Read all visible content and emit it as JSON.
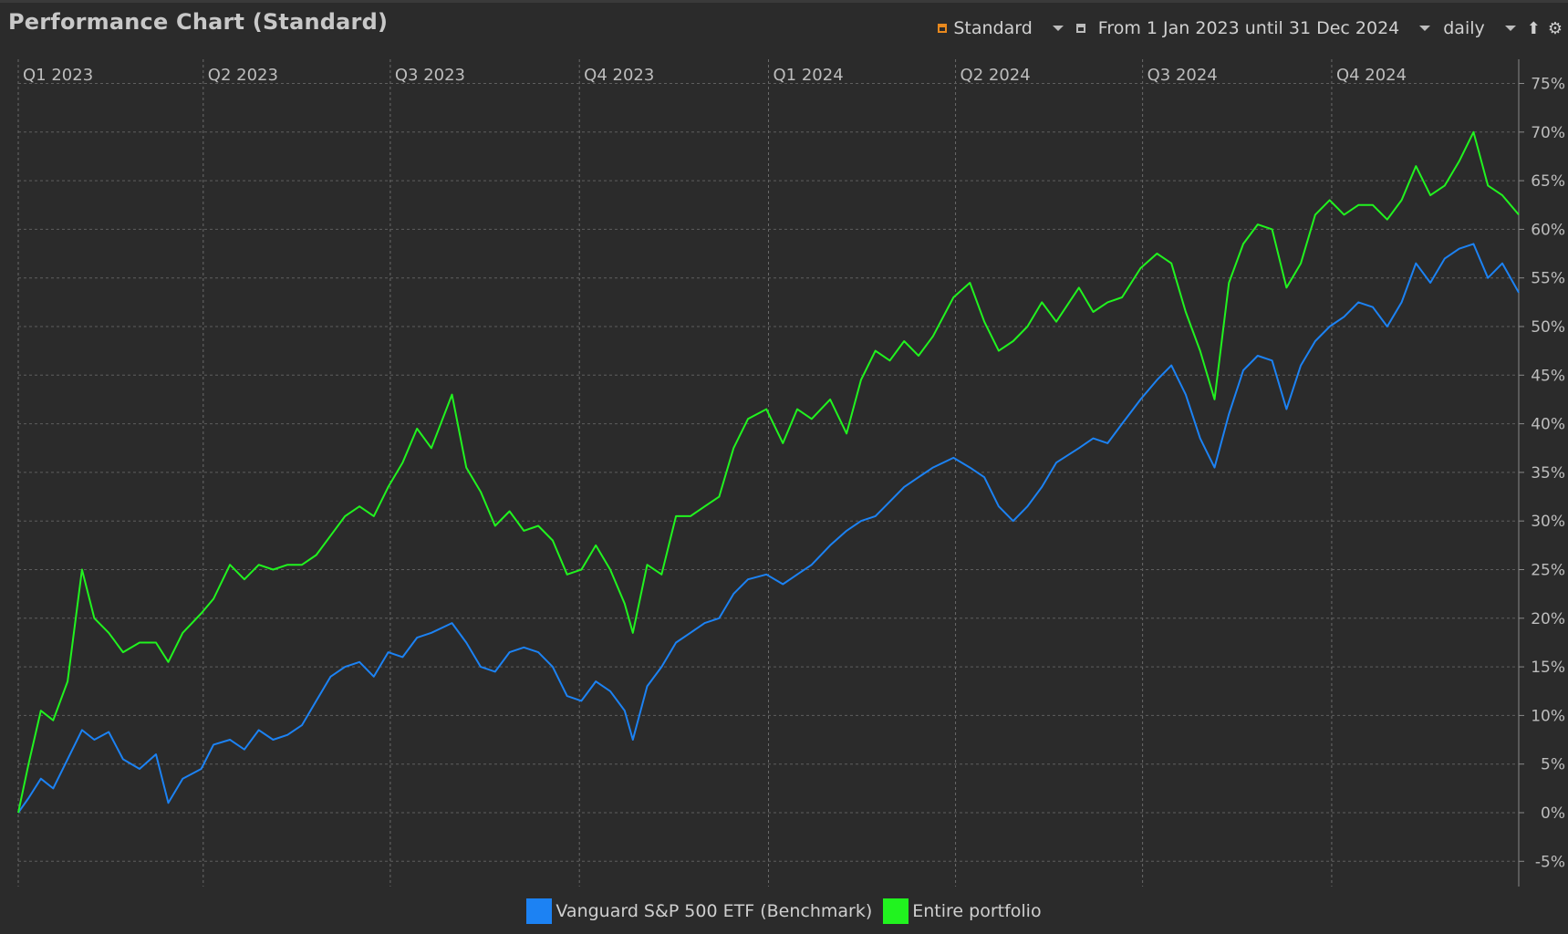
{
  "title": "Performance Chart (Standard)",
  "toolbar": {
    "view_label": "Standard",
    "period_label": "From 1 Jan 2023 until 31 Dec 2024",
    "interval_label": "daily",
    "icons": [
      "standard-view-icon",
      "dropdown-icon",
      "calendar-icon",
      "export-icon",
      "settings-icon"
    ]
  },
  "chart_data": {
    "type": "line",
    "x_ticks": [
      "Q1 2023",
      "Q2 2023",
      "Q3 2023",
      "Q4 2023",
      "Q1 2024",
      "Q2 2024",
      "Q3 2024",
      "Q4 2024"
    ],
    "y_ticks": [
      "75%",
      "70%",
      "65%",
      "60%",
      "55%",
      "50%",
      "45%",
      "40%",
      "35%",
      "30%",
      "25%",
      "20%",
      "15%",
      "10%",
      "5%",
      "0%",
      "-5%"
    ],
    "xlim": [
      "2023-01-01",
      "2024-12-31"
    ],
    "ylim": [
      -7.5,
      77
    ],
    "grid": true,
    "legend_position": "bottom",
    "series": [
      {
        "name": "Vanguard S&P 500 ETF (Benchmark)",
        "color": "#1c82f3",
        "points": [
          [
            "2023-01-01",
            0
          ],
          [
            "2023-01-06",
            1.5
          ],
          [
            "2023-01-12",
            3.5
          ],
          [
            "2023-01-18",
            2.5
          ],
          [
            "2023-01-25",
            5.5
          ],
          [
            "2023-02-01",
            8.5
          ],
          [
            "2023-02-07",
            7.5
          ],
          [
            "2023-02-14",
            8.3
          ],
          [
            "2023-02-21",
            5.5
          ],
          [
            "2023-03-01",
            4.5
          ],
          [
            "2023-03-09",
            6.0
          ],
          [
            "2023-03-15",
            1.0
          ],
          [
            "2023-03-22",
            3.5
          ],
          [
            "2023-03-31",
            4.5
          ],
          [
            "2023-04-06",
            7.0
          ],
          [
            "2023-04-14",
            7.5
          ],
          [
            "2023-04-21",
            6.5
          ],
          [
            "2023-04-28",
            8.5
          ],
          [
            "2023-05-05",
            7.5
          ],
          [
            "2023-05-12",
            8.0
          ],
          [
            "2023-05-19",
            9.0
          ],
          [
            "2023-05-26",
            11.5
          ],
          [
            "2023-06-02",
            14.0
          ],
          [
            "2023-06-09",
            15.0
          ],
          [
            "2023-06-16",
            15.5
          ],
          [
            "2023-06-23",
            14.0
          ],
          [
            "2023-06-30",
            16.5
          ],
          [
            "2023-07-07",
            16.0
          ],
          [
            "2023-07-14",
            18.0
          ],
          [
            "2023-07-21",
            18.5
          ],
          [
            "2023-07-31",
            19.5
          ],
          [
            "2023-08-07",
            17.5
          ],
          [
            "2023-08-14",
            15.0
          ],
          [
            "2023-08-21",
            14.5
          ],
          [
            "2023-08-28",
            16.5
          ],
          [
            "2023-09-04",
            17.0
          ],
          [
            "2023-09-11",
            16.5
          ],
          [
            "2023-09-18",
            15.0
          ],
          [
            "2023-09-25",
            12.0
          ],
          [
            "2023-10-02",
            11.5
          ],
          [
            "2023-10-09",
            13.5
          ],
          [
            "2023-10-16",
            12.5
          ],
          [
            "2023-10-23",
            10.5
          ],
          [
            "2023-10-27",
            7.5
          ],
          [
            "2023-11-03",
            13.0
          ],
          [
            "2023-11-10",
            15.0
          ],
          [
            "2023-11-17",
            17.5
          ],
          [
            "2023-11-24",
            18.5
          ],
          [
            "2023-12-01",
            19.5
          ],
          [
            "2023-12-08",
            20.0
          ],
          [
            "2023-12-15",
            22.5
          ],
          [
            "2023-12-22",
            24.0
          ],
          [
            "2023-12-31",
            24.5
          ],
          [
            "2024-01-08",
            23.5
          ],
          [
            "2024-01-15",
            24.5
          ],
          [
            "2024-01-22",
            25.5
          ],
          [
            "2024-01-31",
            27.5
          ],
          [
            "2024-02-08",
            29.0
          ],
          [
            "2024-02-15",
            30.0
          ],
          [
            "2024-02-22",
            30.5
          ],
          [
            "2024-02-29",
            32.0
          ],
          [
            "2024-03-07",
            33.5
          ],
          [
            "2024-03-14",
            34.5
          ],
          [
            "2024-03-21",
            35.5
          ],
          [
            "2024-03-31",
            36.5
          ],
          [
            "2024-04-08",
            35.5
          ],
          [
            "2024-04-15",
            34.5
          ],
          [
            "2024-04-22",
            31.5
          ],
          [
            "2024-04-29",
            30.0
          ],
          [
            "2024-05-06",
            31.5
          ],
          [
            "2024-05-13",
            33.5
          ],
          [
            "2024-05-20",
            36.0
          ],
          [
            "2024-05-31",
            37.5
          ],
          [
            "2024-06-07",
            38.5
          ],
          [
            "2024-06-14",
            38.0
          ],
          [
            "2024-06-21",
            40.0
          ],
          [
            "2024-06-30",
            42.5
          ],
          [
            "2024-07-08",
            44.5
          ],
          [
            "2024-07-15",
            46.0
          ],
          [
            "2024-07-22",
            43.0
          ],
          [
            "2024-07-29",
            38.5
          ],
          [
            "2024-08-05",
            35.5
          ],
          [
            "2024-08-12",
            41.0
          ],
          [
            "2024-08-19",
            45.5
          ],
          [
            "2024-08-26",
            47.0
          ],
          [
            "2024-09-02",
            46.5
          ],
          [
            "2024-09-09",
            41.5
          ],
          [
            "2024-09-16",
            46.0
          ],
          [
            "2024-09-23",
            48.5
          ],
          [
            "2024-09-30",
            50.0
          ],
          [
            "2024-10-07",
            51.0
          ],
          [
            "2024-10-14",
            52.5
          ],
          [
            "2024-10-21",
            52.0
          ],
          [
            "2024-10-28",
            50.0
          ],
          [
            "2024-11-04",
            52.5
          ],
          [
            "2024-11-11",
            56.5
          ],
          [
            "2024-11-18",
            54.5
          ],
          [
            "2024-11-25",
            57.0
          ],
          [
            "2024-12-02",
            58.0
          ],
          [
            "2024-12-09",
            58.5
          ],
          [
            "2024-12-16",
            55.0
          ],
          [
            "2024-12-23",
            56.5
          ],
          [
            "2024-12-31",
            53.5
          ]
        ]
      },
      {
        "name": "Entire portfolio",
        "color": "#21f31f",
        "points": [
          [
            "2023-01-01",
            0
          ],
          [
            "2023-01-06",
            5.0
          ],
          [
            "2023-01-12",
            10.5
          ],
          [
            "2023-01-18",
            9.5
          ],
          [
            "2023-01-25",
            13.5
          ],
          [
            "2023-02-01",
            25.0
          ],
          [
            "2023-02-07",
            20.0
          ],
          [
            "2023-02-14",
            18.5
          ],
          [
            "2023-02-21",
            16.5
          ],
          [
            "2023-03-01",
            17.5
          ],
          [
            "2023-03-09",
            17.5
          ],
          [
            "2023-03-15",
            15.5
          ],
          [
            "2023-03-22",
            18.5
          ],
          [
            "2023-03-31",
            20.5
          ],
          [
            "2023-04-06",
            22.0
          ],
          [
            "2023-04-14",
            25.5
          ],
          [
            "2023-04-21",
            24.0
          ],
          [
            "2023-04-28",
            25.5
          ],
          [
            "2023-05-05",
            25.0
          ],
          [
            "2023-05-12",
            25.5
          ],
          [
            "2023-05-19",
            25.5
          ],
          [
            "2023-05-26",
            26.5
          ],
          [
            "2023-06-02",
            28.5
          ],
          [
            "2023-06-09",
            30.5
          ],
          [
            "2023-06-16",
            31.5
          ],
          [
            "2023-06-23",
            30.5
          ],
          [
            "2023-06-30",
            33.5
          ],
          [
            "2023-07-07",
            36.0
          ],
          [
            "2023-07-14",
            39.5
          ],
          [
            "2023-07-21",
            37.5
          ],
          [
            "2023-07-31",
            43.0
          ],
          [
            "2023-08-07",
            35.5
          ],
          [
            "2023-08-14",
            33.0
          ],
          [
            "2023-08-21",
            29.5
          ],
          [
            "2023-08-28",
            31.0
          ],
          [
            "2023-09-04",
            29.0
          ],
          [
            "2023-09-11",
            29.5
          ],
          [
            "2023-09-18",
            28.0
          ],
          [
            "2023-09-25",
            24.5
          ],
          [
            "2023-10-02",
            25.0
          ],
          [
            "2023-10-09",
            27.5
          ],
          [
            "2023-10-16",
            25.0
          ],
          [
            "2023-10-23",
            21.5
          ],
          [
            "2023-10-27",
            18.5
          ],
          [
            "2023-11-03",
            25.5
          ],
          [
            "2023-11-10",
            24.5
          ],
          [
            "2023-11-17",
            30.5
          ],
          [
            "2023-11-24",
            30.5
          ],
          [
            "2023-12-01",
            31.5
          ],
          [
            "2023-12-08",
            32.5
          ],
          [
            "2023-12-15",
            37.5
          ],
          [
            "2023-12-22",
            40.5
          ],
          [
            "2023-12-31",
            41.5
          ],
          [
            "2024-01-08",
            38.0
          ],
          [
            "2024-01-15",
            41.5
          ],
          [
            "2024-01-22",
            40.5
          ],
          [
            "2024-01-31",
            42.5
          ],
          [
            "2024-02-08",
            39.0
          ],
          [
            "2024-02-15",
            44.5
          ],
          [
            "2024-02-22",
            47.5
          ],
          [
            "2024-02-29",
            46.5
          ],
          [
            "2024-03-07",
            48.5
          ],
          [
            "2024-03-14",
            47.0
          ],
          [
            "2024-03-21",
            49.0
          ],
          [
            "2024-03-31",
            53.0
          ],
          [
            "2024-04-08",
            54.5
          ],
          [
            "2024-04-15",
            50.5
          ],
          [
            "2024-04-22",
            47.5
          ],
          [
            "2024-04-29",
            48.5
          ],
          [
            "2024-05-06",
            50.0
          ],
          [
            "2024-05-13",
            52.5
          ],
          [
            "2024-05-20",
            50.5
          ],
          [
            "2024-05-31",
            54.0
          ],
          [
            "2024-06-07",
            51.5
          ],
          [
            "2024-06-14",
            52.5
          ],
          [
            "2024-06-21",
            53.0
          ],
          [
            "2024-06-30",
            56.0
          ],
          [
            "2024-07-08",
            57.5
          ],
          [
            "2024-07-15",
            56.5
          ],
          [
            "2024-07-22",
            51.5
          ],
          [
            "2024-07-29",
            47.5
          ],
          [
            "2024-08-05",
            42.5
          ],
          [
            "2024-08-12",
            54.5
          ],
          [
            "2024-08-19",
            58.5
          ],
          [
            "2024-08-26",
            60.5
          ],
          [
            "2024-09-02",
            60.0
          ],
          [
            "2024-09-09",
            54.0
          ],
          [
            "2024-09-16",
            56.5
          ],
          [
            "2024-09-23",
            61.5
          ],
          [
            "2024-09-30",
            63.0
          ],
          [
            "2024-10-07",
            61.5
          ],
          [
            "2024-10-14",
            62.5
          ],
          [
            "2024-10-21",
            62.5
          ],
          [
            "2024-10-28",
            61.0
          ],
          [
            "2024-11-04",
            63.0
          ],
          [
            "2024-11-11",
            66.5
          ],
          [
            "2024-11-18",
            63.5
          ],
          [
            "2024-11-25",
            64.5
          ],
          [
            "2024-12-02",
            67.0
          ],
          [
            "2024-12-09",
            70.0
          ],
          [
            "2024-12-16",
            64.5
          ],
          [
            "2024-12-23",
            63.5
          ],
          [
            "2024-12-31",
            61.5
          ]
        ]
      }
    ]
  }
}
